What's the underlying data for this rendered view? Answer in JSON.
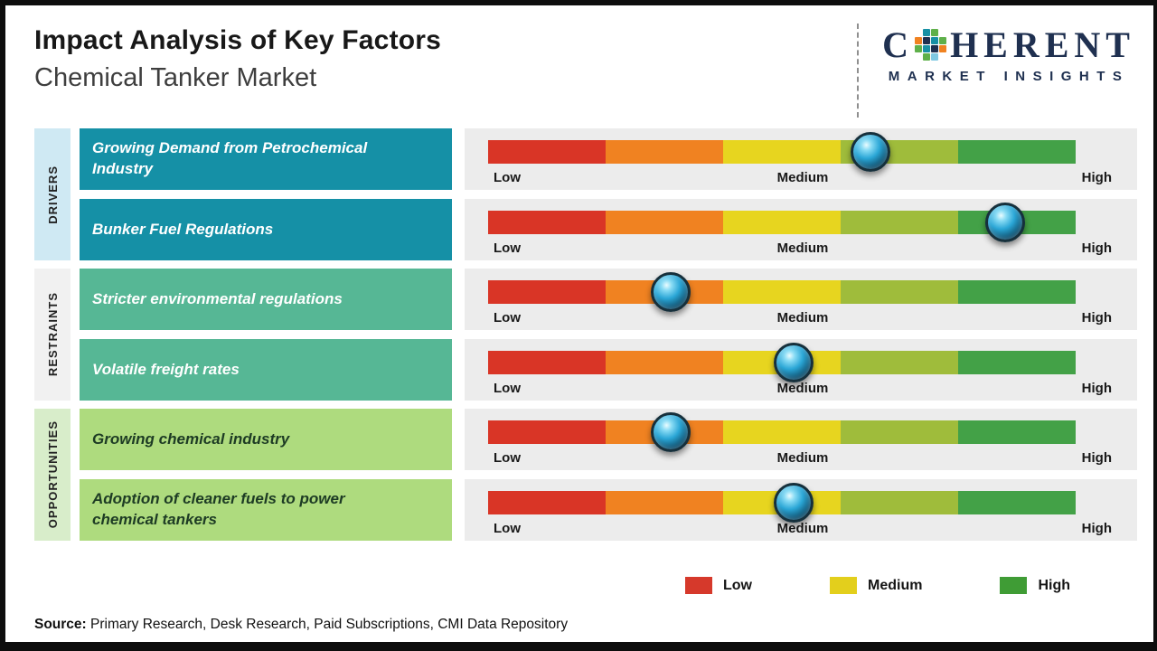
{
  "header": {
    "title": "Impact Analysis of Key Factors",
    "subtitle": "Chemical Tanker Market"
  },
  "logo": {
    "name_start": "C",
    "name_end": "HERENT",
    "tagline": "MARKET INSIGHTS"
  },
  "scale": {
    "low": "Low",
    "medium": "Medium",
    "high": "High"
  },
  "groups": [
    {
      "category": "DRIVERS",
      "factors": [
        {
          "label": "Growing Demand from Petrochemical Industry",
          "impact_pct": 65,
          "impact_level": "Medium-High"
        },
        {
          "label": "Bunker Fuel Regulations",
          "impact_pct": 88,
          "impact_level": "High"
        }
      ]
    },
    {
      "category": "RESTRAINTS",
      "factors": [
        {
          "label": "Stricter environmental regulations",
          "impact_pct": 31,
          "impact_level": "Low-Medium"
        },
        {
          "label": "Volatile freight rates",
          "impact_pct": 52,
          "impact_level": "Medium"
        }
      ]
    },
    {
      "category": "OPPORTUNITIES",
      "factors": [
        {
          "label": "Growing chemical industry",
          "impact_pct": 31,
          "impact_level": "Low-Medium"
        },
        {
          "label": "Adoption of cleaner fuels to power chemical tankers",
          "impact_pct": 52,
          "impact_level": "Medium"
        }
      ]
    }
  ],
  "legend": [
    {
      "label": "Low",
      "color": "#d6392b"
    },
    {
      "label": "Medium",
      "color": "#e3cf1c"
    },
    {
      "label": "High",
      "color": "#3f9c35"
    }
  ],
  "source": {
    "prefix": "Source:",
    "text": " Primary Research, Desk Research, Paid Subscriptions, CMI Data Repository"
  },
  "colors": {
    "bar_segments": [
      "#d93526",
      "#f08221",
      "#e7d51f",
      "#9fbc3b",
      "#43a147"
    ],
    "drivers_box": "#1590a6",
    "restraints_box": "#56b795",
    "opportunities_box": "#aedb7e",
    "drivers_strip": "#cfe9f3",
    "restraints_strip": "#f1f1f1",
    "opportunities_strip": "#d8edca",
    "panel_bg": "#ececec",
    "marker_outer": "#0e4d6b",
    "brand_navy": "#1f3050"
  },
  "chart_data": {
    "type": "table",
    "title": "Impact Analysis of Key Factors",
    "subtitle": "Chemical Tanker Market",
    "x_scale_labels": [
      "Low",
      "Medium",
      "High"
    ],
    "x_range_pct": [
      0,
      100
    ],
    "rows": [
      {
        "category": "Drivers",
        "factor": "Growing Demand from Petrochemical Industry",
        "impact_pct": 65,
        "impact_level": "Medium-High"
      },
      {
        "category": "Drivers",
        "factor": "Bunker Fuel Regulations",
        "impact_pct": 88,
        "impact_level": "High"
      },
      {
        "category": "Restraints",
        "factor": "Stricter environmental regulations",
        "impact_pct": 31,
        "impact_level": "Low-Medium"
      },
      {
        "category": "Restraints",
        "factor": "Volatile freight rates",
        "impact_pct": 52,
        "impact_level": "Medium"
      },
      {
        "category": "Opportunities",
        "factor": "Growing chemical industry",
        "impact_pct": 31,
        "impact_level": "Low-Medium"
      },
      {
        "category": "Opportunities",
        "factor": "Adoption of cleaner fuels to power chemical tankers",
        "impact_pct": 52,
        "impact_level": "Medium"
      }
    ],
    "legend": [
      "Low",
      "Medium",
      "High"
    ],
    "grid": false,
    "legend_position": "bottom-right"
  }
}
